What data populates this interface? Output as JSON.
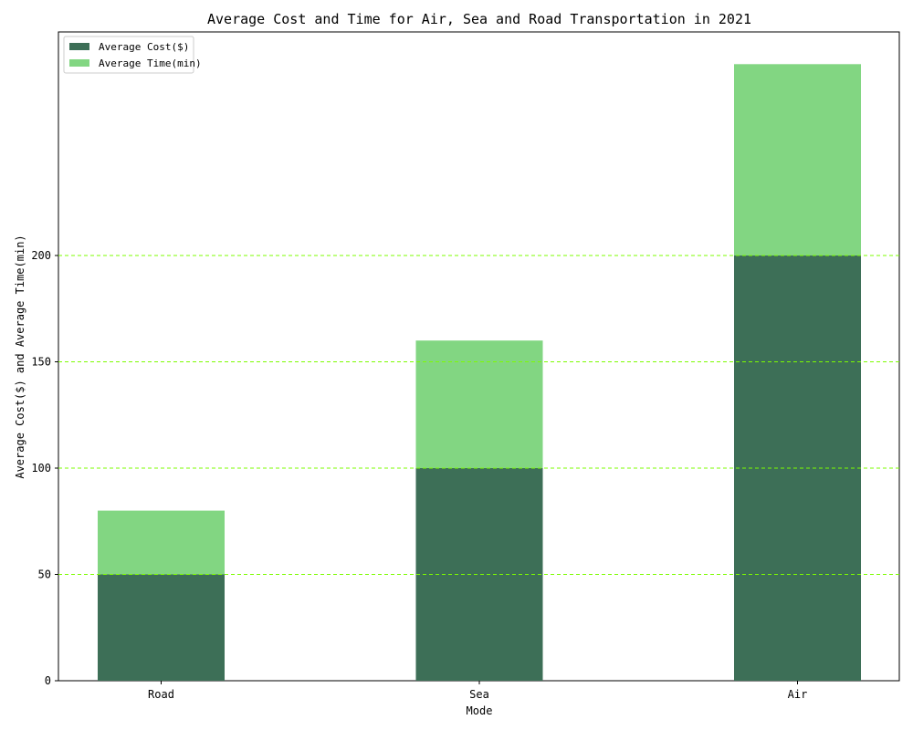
{
  "chart_data": {
    "type": "bar",
    "stacked": true,
    "title": "Average Cost and Time for Air, Sea and Road Transportation in 2021",
    "xlabel": "Mode",
    "ylabel": "Average Cost($) and Average Time(min)",
    "categories": [
      "Road",
      "Sea",
      "Air"
    ],
    "series": [
      {
        "name": "Average Cost($)",
        "values": [
          50,
          100,
          200
        ],
        "color": "#3d6f57"
      },
      {
        "name": "Average Time(min)",
        "values": [
          30,
          60,
          90
        ],
        "color": "#82d682"
      }
    ],
    "ylim": [
      0,
      290
    ],
    "yticks": [
      0,
      50,
      100,
      150,
      200
    ],
    "grid": {
      "axis": "y",
      "style": "dashed",
      "color": "#7cfc00"
    },
    "legend_position": "top-left"
  }
}
